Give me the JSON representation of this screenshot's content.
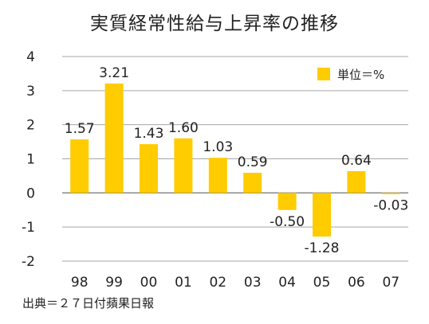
{
  "title": "実質経常性給与上昇率の推移",
  "source_note": "出典＝２７日付蘋果日報",
  "chart_data": {
    "type": "bar",
    "categories": [
      "98",
      "99",
      "00",
      "01",
      "02",
      "03",
      "04",
      "05",
      "06",
      "07"
    ],
    "values": [
      1.57,
      3.21,
      1.43,
      1.6,
      1.03,
      0.59,
      -0.5,
      -1.28,
      0.64,
      -0.03
    ],
    "data_labels": [
      "1.57",
      "3.21",
      "1.43",
      "1.60",
      "1.03",
      "0.59",
      "-0.50",
      "-1.28",
      "0.64",
      "-0.03"
    ],
    "ylim": [
      -2,
      4
    ],
    "yticks": [
      "4",
      "3",
      "2",
      "1",
      "0",
      "-1",
      "-2"
    ],
    "grid": true,
    "legend": {
      "label": "単位＝%",
      "position": "top-right"
    },
    "colors": {
      "bar": "#FFCC00",
      "grid": "#a6a6a6",
      "axis": "#7f7f7f"
    }
  }
}
